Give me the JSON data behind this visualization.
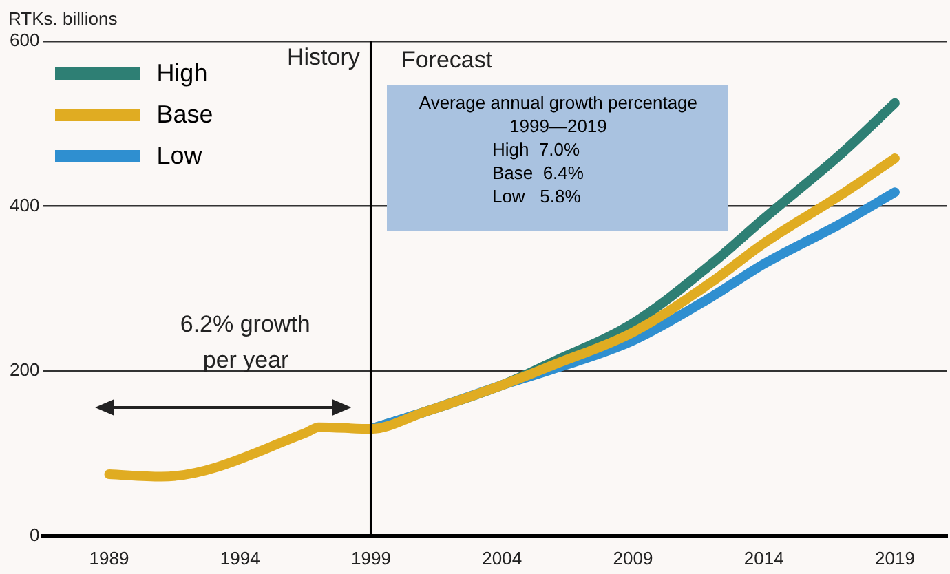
{
  "chart_data": {
    "type": "line",
    "ylabel": "RTKs. billions",
    "xlim": [
      1986.5,
      2021
    ],
    "xticks": [
      1989,
      1994,
      1999,
      2004,
      2009,
      2014,
      2019
    ],
    "ylim": [
      0,
      600
    ],
    "yticks": [
      0,
      200,
      400,
      600
    ],
    "grid": "y",
    "legend": "top left",
    "marker": "none",
    "line_style": "solid",
    "ref_lines": [
      {
        "axis": "x",
        "value": 1999,
        "color": "#000000"
      }
    ],
    "annotations": [
      "History",
      "Forecast",
      "Average annual growth percentage",
      "1999—2019",
      "High  7.0%",
      "Base  6.4%",
      "Low   5.8%",
      "6.2% growth",
      "per year"
    ],
    "series": [
      {
        "name": "High",
        "color": "#2e7f74",
        "x": [
          1999,
          2001,
          2004,
          2006,
          2009,
          2012,
          2014,
          2017,
          2019
        ],
        "values": [
          130,
          150,
          183,
          212,
          258,
          330,
          385,
          465,
          525
        ]
      },
      {
        "name": "Low",
        "color": "#2f8fd0",
        "x": [
          1999,
          2001,
          2004,
          2006,
          2009,
          2012,
          2014,
          2017,
          2019
        ],
        "values": [
          130,
          150,
          183,
          203,
          237,
          290,
          330,
          380,
          417
        ]
      },
      {
        "name": "Base",
        "color": "#e0ac22",
        "x": [
          1989,
          1991,
          1996.5,
          1997,
          1999,
          2001,
          2004,
          2006,
          2009,
          2012,
          2014,
          2017,
          2019
        ],
        "values": [
          75,
          72,
          125,
          132,
          130,
          150,
          183,
          208,
          247,
          308,
          355,
          415,
          458
        ]
      }
    ]
  }
}
